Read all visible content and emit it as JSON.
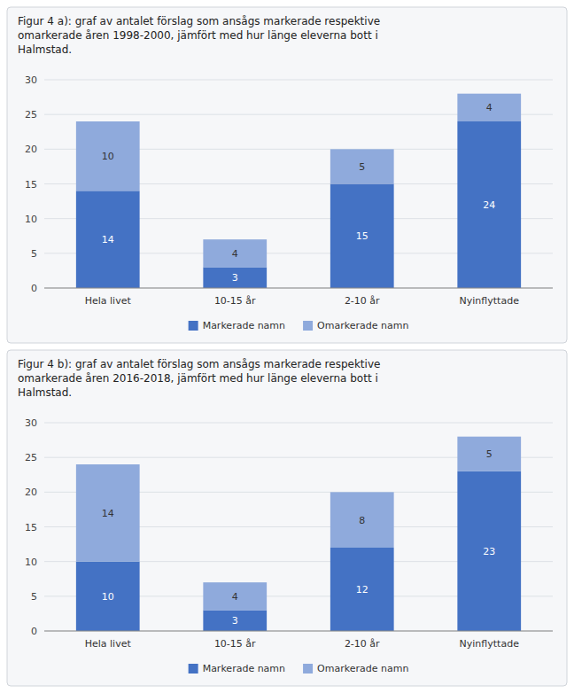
{
  "chart_data": [
    {
      "type": "bar",
      "title": "Figur 4 a): graf av antalet förslag som ansågs markerade respektive\nomarkerade åren 1998-2000, jämfört med hur länge eleverna bott i\nHalmstad.",
      "categories": [
        "Hela livet",
        "10-15 år",
        "2-10 år",
        "Nyinflyttade"
      ],
      "series": [
        {
          "name": "Markerade namn",
          "color": "#4472C4",
          "values": [
            14,
            3,
            15,
            24
          ]
        },
        {
          "name": "Omarkerade namn",
          "color": "#8FAADC",
          "values": [
            10,
            4,
            5,
            4
          ]
        }
      ],
      "ylim": [
        0,
        30
      ],
      "yticks": [
        0,
        5,
        10,
        15,
        20,
        25,
        30
      ],
      "stacked": true,
      "grid": true,
      "data_labels": true,
      "legend": "bottom"
    },
    {
      "type": "bar",
      "title": "Figur 4 b): graf av antalet förslag som ansågs markerade respektive\nomarkerade åren 2016-2018, jämfört med hur länge eleverna bott i\nHalmstad.",
      "categories": [
        "Hela livet",
        "10-15 år",
        "2-10 år",
        "Nyinflyttade"
      ],
      "series": [
        {
          "name": "Markerade namn",
          "color": "#4472C4",
          "values": [
            10,
            3,
            12,
            23
          ]
        },
        {
          "name": "Omarkerade namn",
          "color": "#8FAADC",
          "values": [
            14,
            4,
            8,
            5
          ]
        }
      ],
      "ylim": [
        0,
        30
      ],
      "yticks": [
        0,
        5,
        10,
        15,
        20,
        25,
        30
      ],
      "stacked": true,
      "grid": true,
      "data_labels": true,
      "legend": "bottom"
    }
  ]
}
